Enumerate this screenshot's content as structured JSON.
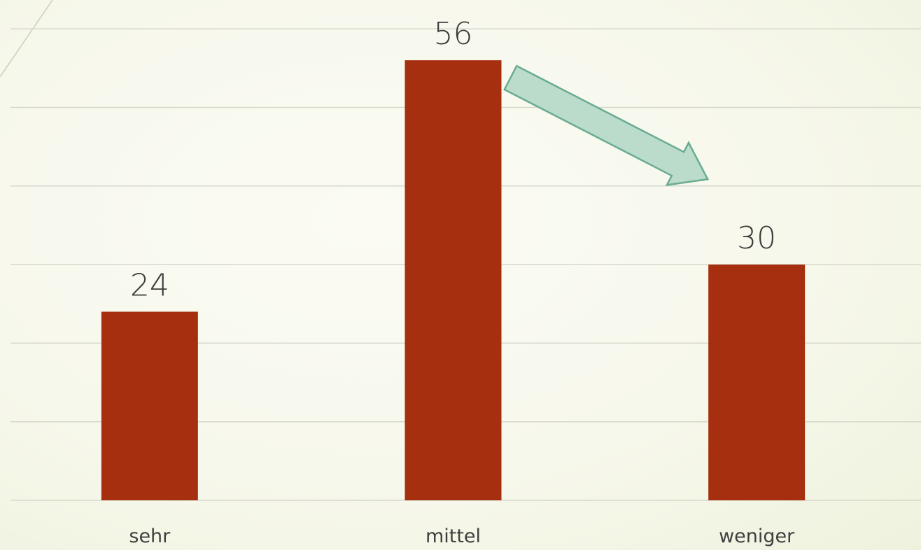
{
  "chart_data": {
    "type": "bar",
    "categories": [
      "sehr",
      "mittel",
      "weniger"
    ],
    "values": [
      24,
      56,
      30
    ],
    "title": "",
    "xlabel": "",
    "ylabel": "",
    "ylim": [
      0,
      60
    ],
    "grid": true,
    "data_labels": true,
    "bar_color": "#a52f0f",
    "annotation": {
      "type": "arrow",
      "from_category": "mittel",
      "to_category": "weniger",
      "color": "#bcdccb",
      "border_color": "#6aac92"
    }
  }
}
